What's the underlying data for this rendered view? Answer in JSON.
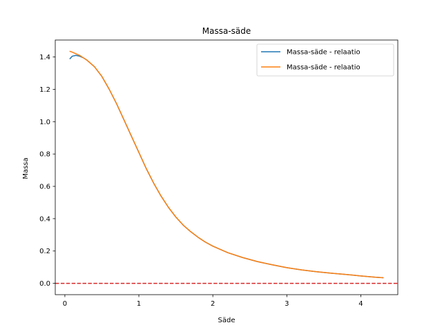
{
  "chart_data": {
    "type": "line",
    "title": "Massa-säde",
    "xlabel": "Säde",
    "ylabel": "Massa",
    "xlim": [
      -0.13,
      4.5
    ],
    "ylim": [
      -0.07,
      1.505
    ],
    "xticks": [
      0,
      1,
      2,
      3,
      4
    ],
    "yticks": [
      0.0,
      0.2,
      0.4,
      0.6,
      0.8,
      1.0,
      1.2,
      1.4
    ],
    "xtick_labels": [
      "0",
      "1",
      "2",
      "3",
      "4"
    ],
    "ytick_labels": [
      "0.0",
      "0.2",
      "0.4",
      "0.6",
      "0.8",
      "1.0",
      "1.2",
      "1.4"
    ],
    "grid": false,
    "legend_position": "top-right",
    "reference_line": {
      "y": 0.0,
      "color": "#d62728",
      "style": "dashed"
    },
    "series": [
      {
        "name": "Massa-säde - relaatio",
        "color": "#1f77b4",
        "x": [
          0.07,
          0.1,
          0.15,
          0.2,
          0.25,
          0.3,
          0.4,
          0.5,
          0.6,
          0.7,
          0.8,
          0.9,
          1.0,
          1.1,
          1.2,
          1.3,
          1.4,
          1.5,
          1.6,
          1.7,
          1.8,
          1.9,
          2.0,
          2.2,
          2.4,
          2.6,
          2.8,
          3.0,
          3.2,
          3.4,
          3.6,
          3.8,
          4.0,
          4.2,
          4.3
        ],
        "y": [
          1.39,
          1.405,
          1.41,
          1.405,
          1.395,
          1.38,
          1.34,
          1.28,
          1.2,
          1.11,
          1.01,
          0.91,
          0.81,
          0.71,
          0.62,
          0.54,
          0.47,
          0.41,
          0.36,
          0.32,
          0.285,
          0.255,
          0.23,
          0.19,
          0.16,
          0.135,
          0.115,
          0.097,
          0.083,
          0.072,
          0.063,
          0.055,
          0.046,
          0.038,
          0.035
        ]
      },
      {
        "name": "Massa-säde - relaatio",
        "color": "#ff7f0e",
        "x": [
          0.07,
          0.1,
          0.15,
          0.2,
          0.25,
          0.3,
          0.4,
          0.5,
          0.6,
          0.7,
          0.8,
          0.9,
          1.0,
          1.1,
          1.2,
          1.3,
          1.4,
          1.5,
          1.6,
          1.7,
          1.8,
          1.9,
          2.0,
          2.2,
          2.4,
          2.6,
          2.8,
          3.0,
          3.2,
          3.4,
          3.6,
          3.8,
          4.0,
          4.2,
          4.3
        ],
        "y": [
          1.435,
          1.43,
          1.42,
          1.41,
          1.395,
          1.38,
          1.34,
          1.28,
          1.2,
          1.11,
          1.01,
          0.91,
          0.81,
          0.71,
          0.62,
          0.54,
          0.47,
          0.41,
          0.36,
          0.32,
          0.285,
          0.255,
          0.23,
          0.19,
          0.16,
          0.135,
          0.115,
          0.097,
          0.083,
          0.072,
          0.063,
          0.055,
          0.046,
          0.038,
          0.035
        ]
      }
    ]
  }
}
